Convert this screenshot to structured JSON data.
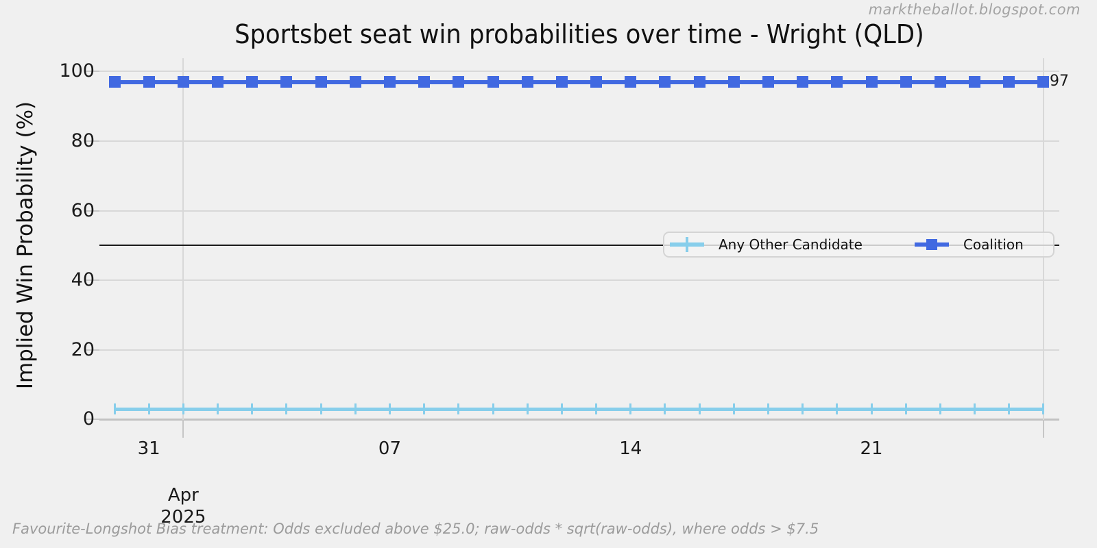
{
  "watermark": "marktheballot.blogspot.com",
  "footer": "Favourite-Longshot Bias treatment: Odds excluded above $25.0; raw-odds * sqrt(raw-odds), where odds > $7.5",
  "chart_data": {
    "type": "line",
    "title": "Sportsbet seat win probabilities over time - Wright (QLD)",
    "xlabel": "",
    "ylabel": "Implied Win Probability (%)",
    "ylim": [
      0,
      100
    ],
    "yticks": [
      0,
      20,
      40,
      60,
      80,
      100
    ],
    "x_range": "daily points from 2025-03-30 to 2025-04-26",
    "xticks": [
      {
        "day": 1,
        "label": "31"
      },
      {
        "day": 8,
        "label": "07"
      },
      {
        "day": 15,
        "label": "14"
      },
      {
        "day": 22,
        "label": "21"
      }
    ],
    "month_gridline_days": [
      2,
      27
    ],
    "month_label": {
      "month": "Apr",
      "year": "2025"
    },
    "reference_line": 50,
    "grid": true,
    "legend_position": "center-right",
    "end_annotation": "97",
    "colors": {
      "background": "#f0f0f0",
      "gridline": "#d8d8d8",
      "axis": "#c2c2c2",
      "reference": "#1a1a1a",
      "any_other_candidate": "#87ceeb",
      "coalition": "#4169e1",
      "muted_text": "#9b9b9b"
    },
    "series": [
      {
        "name": "Any Other Candidate",
        "color": "#87ceeb",
        "marker": "vertical-tick",
        "values": [
          3,
          3,
          3,
          3,
          3,
          3,
          3,
          3,
          3,
          3,
          3,
          3,
          3,
          3,
          3,
          3,
          3,
          3,
          3,
          3,
          3,
          3,
          3,
          3,
          3,
          3,
          3,
          3
        ]
      },
      {
        "name": "Coalition",
        "color": "#4169e1",
        "marker": "square",
        "values": [
          97,
          97,
          97,
          97,
          97,
          97,
          97,
          97,
          97,
          97,
          97,
          97,
          97,
          97,
          97,
          97,
          97,
          97,
          97,
          97,
          97,
          97,
          97,
          97,
          97,
          97,
          97,
          97
        ]
      }
    ]
  }
}
